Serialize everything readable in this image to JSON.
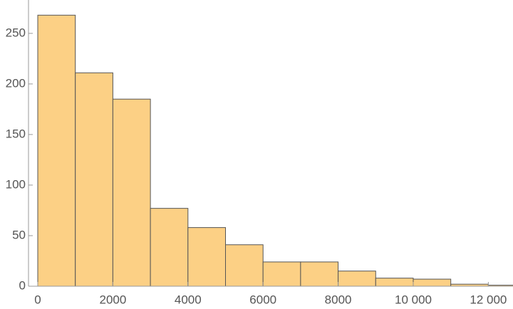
{
  "chart_data": {
    "type": "histogram",
    "bins": [
      0,
      1000,
      2000,
      3000,
      4000,
      5000,
      6000,
      7000,
      8000,
      9000,
      10000,
      11000,
      12000,
      13000
    ],
    "values": [
      268,
      211,
      185,
      77,
      58,
      41,
      24,
      24,
      15,
      8,
      7,
      2,
      1
    ],
    "color": "#fcd085",
    "xlim": [
      -247,
      12657
    ],
    "ylim": [
      0,
      283
    ],
    "xticks": [
      0,
      2000,
      4000,
      6000,
      8000,
      {
        "value": 10000,
        "label": "10 000"
      },
      {
        "value": 12000,
        "label": "12 000"
      }
    ],
    "yticks": [
      0,
      50,
      100,
      150,
      200,
      250
    ]
  }
}
